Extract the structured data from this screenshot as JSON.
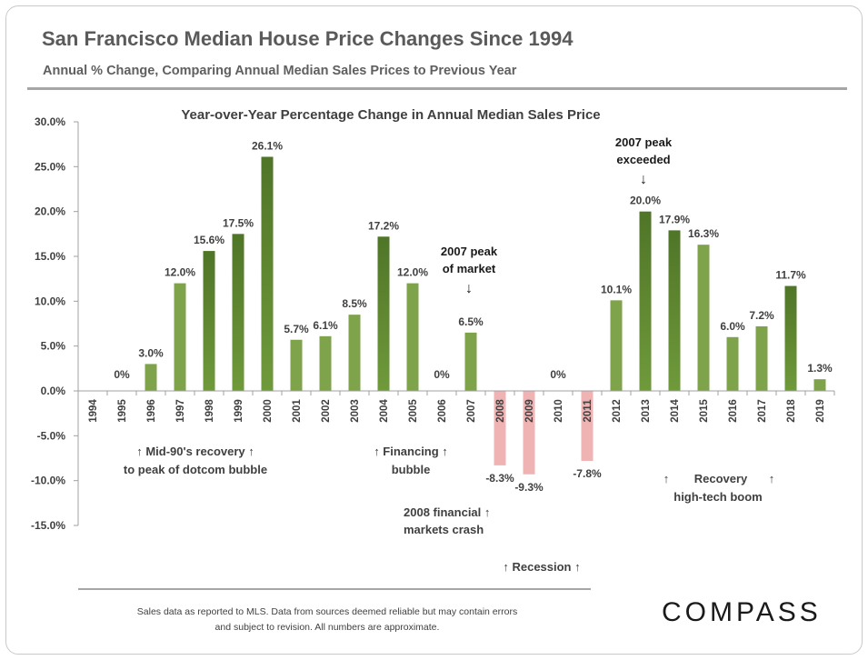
{
  "header": {
    "title": "San Francisco Median House Price Changes Since 1994",
    "subtitle": "Annual % Change, Comparing Annual Median Sales Prices to Previous Year"
  },
  "chart_data": {
    "type": "bar",
    "title": "Year-over-Year Percentage Change in Annual Median Sales Price",
    "xlabel": "",
    "ylabel": "",
    "ylim": [
      -15,
      30
    ],
    "yticks": [
      30,
      25,
      20,
      15,
      10,
      5,
      0,
      -5,
      -10,
      -15
    ],
    "ytick_labels": [
      "30.0%",
      "25.0%",
      "20.0%",
      "15.0%",
      "10.0%",
      "5.0%",
      "0.0%",
      "-5.0%",
      "-10.0%",
      "-15.0%"
    ],
    "categories": [
      "1994",
      "1995",
      "1996",
      "1997",
      "1998",
      "1999",
      "2000",
      "2001",
      "2002",
      "2003",
      "2004",
      "2005",
      "2006",
      "2007",
      "2008",
      "2009",
      "2010",
      "2011",
      "2012",
      "2013",
      "2014",
      "2015",
      "2016",
      "2017",
      "2018",
      "2019"
    ],
    "values": [
      null,
      0,
      3.0,
      12.0,
      15.6,
      17.5,
      26.1,
      5.7,
      6.1,
      8.5,
      17.2,
      12.0,
      0,
      6.5,
      -8.3,
      -9.3,
      0,
      -7.8,
      10.1,
      20.0,
      17.9,
      16.3,
      6.0,
      7.2,
      11.7,
      1.3
    ],
    "value_labels": [
      "",
      "0%",
      "3.0%",
      "12.0%",
      "15.6%",
      "17.5%",
      "26.1%",
      "5.7%",
      "6.1%",
      "8.5%",
      "17.2%",
      "12.0%",
      "0%",
      "6.5%",
      "-8.3%",
      "-9.3%",
      "0%",
      "-7.8%",
      "10.1%",
      "20.0%",
      "17.9%",
      "16.3%",
      "6.0%",
      "7.2%",
      "11.7%",
      "1.3%"
    ],
    "bar_shades": [
      "",
      "",
      "light",
      "light",
      "dark",
      "dark",
      "dark",
      "light",
      "light",
      "light",
      "dark",
      "light",
      "",
      "light",
      "negative",
      "negative",
      "",
      "negative",
      "light",
      "dark",
      "dark",
      "light",
      "light",
      "light",
      "dark",
      "light"
    ],
    "grid": false,
    "legend": "none"
  },
  "colors": {
    "bar_light": "#7ea34a",
    "bar_dark_top": "#4f7527",
    "bar_dark_bottom": "#6f9a3b",
    "bar_negative": "#efb3b3",
    "axis": "#a0a0a0",
    "text": "#404040"
  },
  "annotations": {
    "mid90s": [
      "↑  Mid-90's recovery ↑",
      "to peak of dotcom bubble"
    ],
    "financing": [
      "↑ Financing ↑",
      "bubble"
    ],
    "peak2007": [
      "2007 peak",
      "of market",
      "↓"
    ],
    "crash2008": [
      "2008 financial ↑",
      "markets crash"
    ],
    "recession": "↑ Recession ↑",
    "peak_exceeded": [
      "2007 peak",
      "exceeded",
      "↓"
    ],
    "recovery": [
      "↑",
      "Recovery",
      "↑",
      "high-tech boom"
    ]
  },
  "footer": {
    "footnote_line1": "Sales data as reported to MLS. Data from sources deemed reliable but may contain errors",
    "footnote_line2": "and subject to revision.  All numbers are approximate.",
    "logo": "COMPASS"
  }
}
